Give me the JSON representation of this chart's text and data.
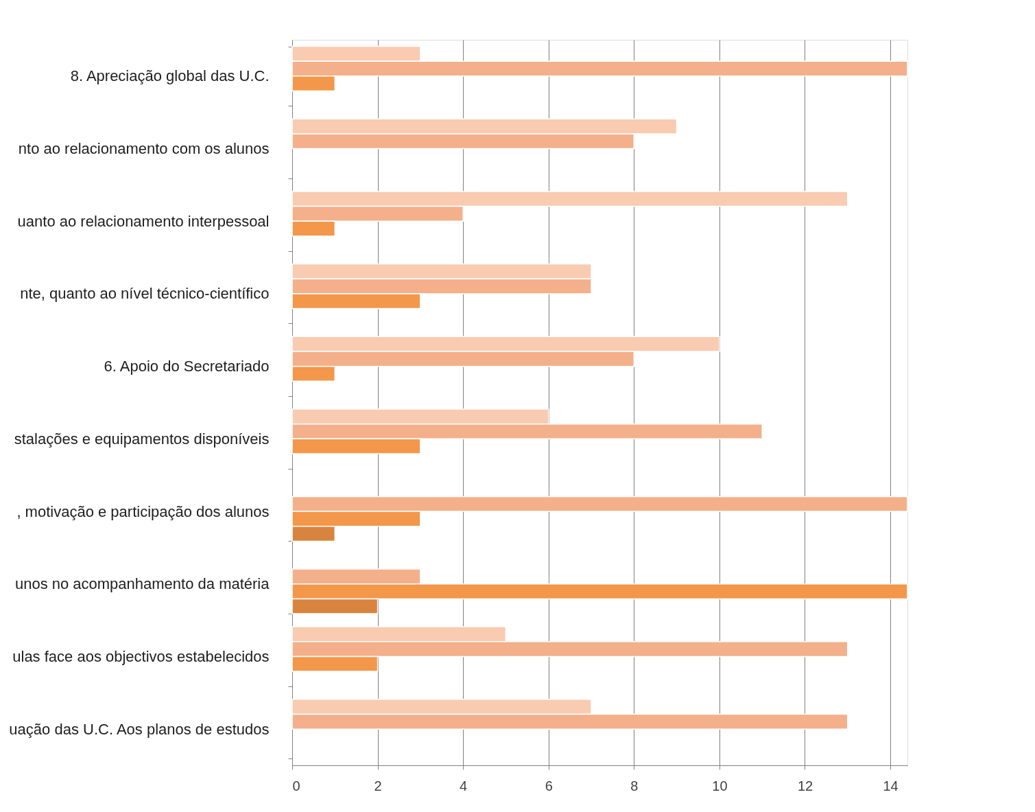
{
  "chart_data": {
    "type": "bar",
    "orientation": "horizontal",
    "categories": [
      "8. Apreciação global das U.C.",
      "nto ao relacionamento com os alunos",
      "uanto ao relacionamento interpessoal",
      "nte, quanto ao nível técnico-científico",
      "6. Apoio do Secretariado",
      "stalações e equipamentos disponíveis",
      ", motivação e participação dos alunos",
      "unos no acompanhamento da matéria",
      "ulas face aos objectivos estabelecidos",
      "uação das U.C.  Aos planos de estudos"
    ],
    "series": [
      {
        "color": "#f9cbb1",
        "values": [
          3,
          9,
          13,
          7,
          10,
          6,
          null,
          null,
          5,
          7
        ]
      },
      {
        "color": "#f4b08a",
        "values": [
          14.4,
          8,
          4,
          7,
          8,
          11,
          14.4,
          3,
          13,
          13
        ]
      },
      {
        "color": "#f3974a",
        "values": [
          1,
          null,
          1,
          3,
          1,
          3,
          3,
          14.4,
          2,
          null
        ]
      },
      {
        "color": "#d9843e",
        "values": [
          null,
          null,
          null,
          null,
          null,
          null,
          1,
          2,
          null,
          null
        ]
      }
    ],
    "xlim": [
      0,
      14.4
    ],
    "xticks": [
      0,
      2,
      4,
      6,
      8,
      10,
      12,
      14
    ],
    "grid": "x"
  }
}
